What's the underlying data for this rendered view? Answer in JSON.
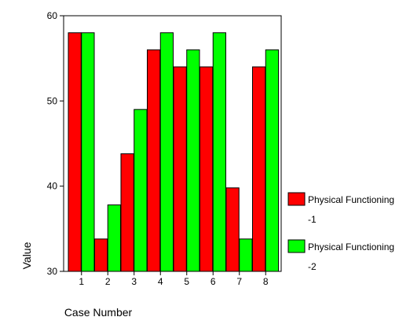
{
  "chart_data": {
    "type": "bar",
    "title": "",
    "xlabel": "Case Number",
    "ylabel": "Value",
    "categories": [
      "1",
      "2",
      "3",
      "4",
      "5",
      "6",
      "7",
      "8"
    ],
    "ylim": [
      30,
      60
    ],
    "yticks": [
      30,
      40,
      50,
      60
    ],
    "grid": false,
    "legend_position": "right",
    "series": [
      {
        "name_line1": "Physical Functioning",
        "name_line2": "-1",
        "color": "#ff0000",
        "values": [
          58,
          33.8,
          43.8,
          56,
          54,
          54,
          39.8,
          54
        ]
      },
      {
        "name_line1": "Physical Functioning",
        "name_line2": "-2",
        "color": "#00ff00",
        "values": [
          58,
          37.8,
          49,
          58,
          56,
          58,
          33.8,
          56
        ]
      }
    ]
  }
}
